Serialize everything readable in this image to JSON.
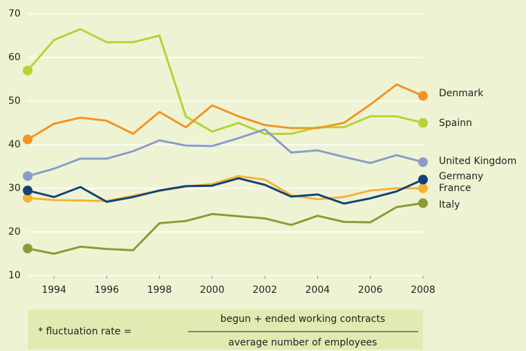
{
  "chart_data": {
    "type": "line",
    "x": [
      1993,
      1994,
      1995,
      1996,
      1997,
      1998,
      1999,
      2000,
      2001,
      2002,
      2003,
      2004,
      2005,
      2006,
      2007,
      2008
    ],
    "xlim": [
      1993,
      2008
    ],
    "xticks": [
      1994,
      1996,
      1998,
      2000,
      2002,
      2004,
      2006,
      2008
    ],
    "ylim": [
      10,
      70
    ],
    "yticks": [
      10,
      20,
      30,
      40,
      50,
      60,
      70
    ],
    "grid": true,
    "series": [
      {
        "name": "Spainn",
        "color": "#b5d334",
        "values": [
          57,
          64,
          66.5,
          63.5,
          63.5,
          65,
          46.5,
          43,
          45,
          42.5,
          42.5,
          44,
          44,
          46.5,
          46.5,
          45
        ]
      },
      {
        "name": "Denmark",
        "color": "#f39325",
        "values": [
          41.2,
          44.8,
          46.2,
          45.5,
          42.5,
          47.5,
          44,
          49,
          46.5,
          44.5,
          43.8,
          43.8,
          45,
          49.2,
          53.8,
          51.2
        ]
      },
      {
        "name": "United Kingdom",
        "color": "#8b9bc9",
        "values": [
          32.8,
          34.5,
          36.8,
          36.8,
          38.5,
          41,
          39.8,
          39.7,
          41.5,
          43.5,
          38.2,
          38.7,
          37.2,
          35.8,
          37.6,
          36
        ]
      },
      {
        "name": "France",
        "color": "#f5b335",
        "values": [
          27.8,
          27.3,
          27.2,
          27.1,
          28.3,
          29.4,
          30.4,
          31,
          32.8,
          32,
          28.4,
          27.5,
          28,
          29.5,
          30,
          30
        ]
      },
      {
        "name": "Germany",
        "color": "#13427a",
        "values": [
          29.5,
          28,
          30.3,
          26.9,
          28,
          29.5,
          30.5,
          30.6,
          32.3,
          30.8,
          28.1,
          28.6,
          26.5,
          27.7,
          29.3,
          32
        ]
      },
      {
        "name": "Italy",
        "color": "#8c9a39",
        "values": [
          16.2,
          15,
          16.6,
          16.1,
          15.8,
          22,
          22.5,
          24.1,
          23.6,
          23.1,
          21.6,
          23.7,
          22.3,
          22.2,
          25.7,
          26.6
        ]
      }
    ],
    "footnote": {
      "label": "* fluctuation rate =",
      "numerator": "begun + ended working contracts",
      "denominator": "average number of employees"
    }
  }
}
